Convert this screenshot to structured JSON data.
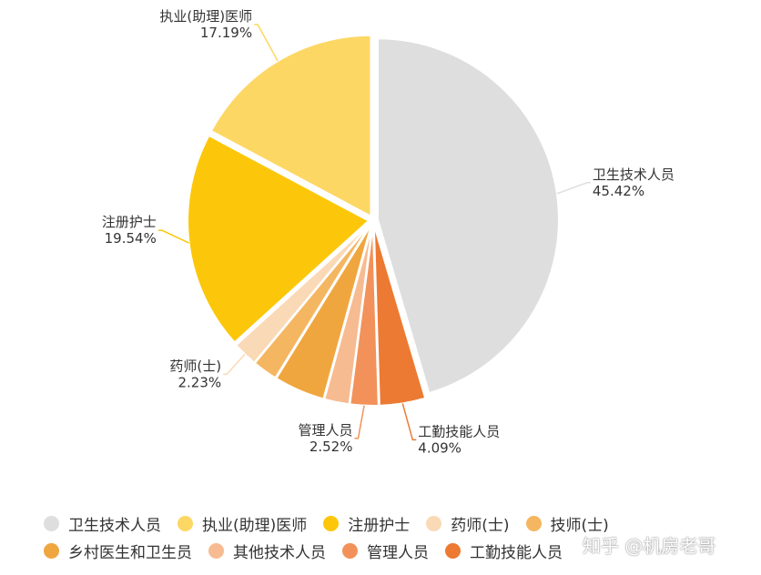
{
  "chart_data": {
    "type": "pie",
    "title": "",
    "slices": [
      {
        "name": "卫生技术人员",
        "value": 45.42,
        "label": "45.42%",
        "color": "#DEDEDE"
      },
      {
        "name": "工勤技能人员",
        "value": 4.09,
        "label": "4.09%",
        "color": "#EC7A33"
      },
      {
        "name": "管理人员",
        "value": 2.52,
        "label": "2.52%",
        "color": "#F2925A"
      },
      {
        "name": "其他技术人员",
        "value": 2.23,
        "label": "",
        "color": "#F7BB91"
      },
      {
        "name": "乡村医生和卫生员",
        "value": 4.54,
        "label": "",
        "color": "#F0A63E"
      },
      {
        "name": "技师(士)",
        "value": 2.23,
        "label": "",
        "color": "#F5B661"
      },
      {
        "name": "药师(士)",
        "value": 2.23,
        "label": "2.23%",
        "color": "#FAD9B6"
      },
      {
        "name": "注册护士",
        "value": 19.54,
        "label": "19.54%",
        "color": "#FCC70A"
      },
      {
        "name": "执业(助理)医师",
        "value": 17.19,
        "label": "17.19%",
        "color": "#FDD764"
      }
    ],
    "legend": {
      "position": "bottom",
      "rows": [
        [
          {
            "name": "卫生技术人员",
            "color": "#DEDEDE"
          },
          {
            "name": "执业(助理)医师",
            "color": "#FDD764"
          },
          {
            "name": "注册护士",
            "color": "#FCC70A"
          },
          {
            "name": "药师(士)",
            "color": "#FAD9B6"
          },
          {
            "name": "技师(士)",
            "color": "#F5B661"
          }
        ],
        [
          {
            "name": "乡村医生和卫生员",
            "color": "#F0A63E"
          },
          {
            "name": "其他技术人员",
            "color": "#F7BB91"
          },
          {
            "name": "管理人员",
            "color": "#F2925A"
          },
          {
            "name": "工勤技能人员",
            "color": "#EC7A33"
          }
        ]
      ]
    }
  },
  "watermark": "知乎 @机房老哥"
}
